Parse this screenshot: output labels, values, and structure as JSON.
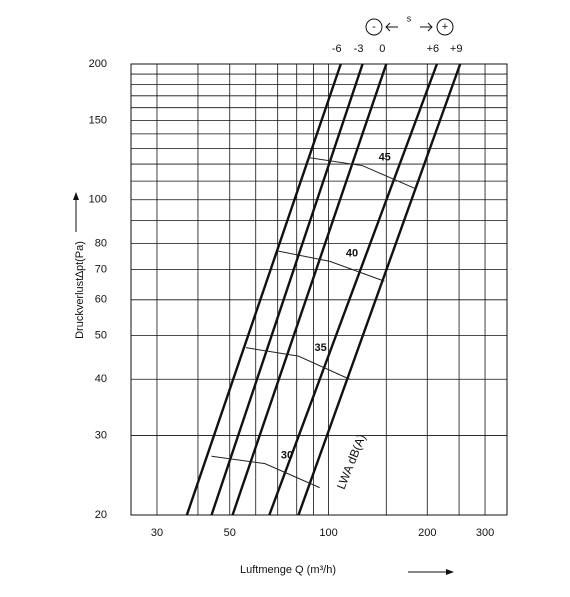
{
  "chart_data": {
    "type": "line",
    "y_label": "Druckverlust∆pt(Pa)",
    "x_label": "Luftmenge Q (m³/h)",
    "line_label": "LWA dB(A)",
    "minus": "-",
    "plus": "+",
    "s_label": "s",
    "xlog": true,
    "ylog": true,
    "grid": true,
    "xlim": [
      25,
      350
    ],
    "ylim": [
      20,
      200
    ],
    "xticks": [
      30,
      50,
      100,
      200,
      300
    ],
    "xminor": [
      40,
      60,
      70,
      80,
      90,
      150,
      250
    ],
    "yticks": [
      20,
      30,
      40,
      50,
      60,
      70,
      80,
      100,
      150,
      200
    ],
    "yminor": [
      90,
      110,
      120,
      130,
      140,
      160,
      170,
      180,
      190
    ],
    "series": [
      {
        "name": "-6",
        "color": "#111",
        "x": [
          37,
          109
        ],
        "values": [
          20,
          200
        ]
      },
      {
        "name": "-3",
        "color": "#111",
        "x": [
          44,
          127
        ],
        "values": [
          20,
          200
        ]
      },
      {
        "name": "0",
        "color": "#111",
        "x": [
          51,
          150
        ],
        "values": [
          20,
          200
        ]
      },
      {
        "name": "+6",
        "color": "#111",
        "x": [
          66,
          214
        ],
        "values": [
          20,
          200
        ]
      },
      {
        "name": "+9",
        "color": "#111",
        "x": [
          81,
          252
        ],
        "values": [
          20,
          200
        ]
      }
    ],
    "noise_curves": [
      {
        "name": "45",
        "color": "#222",
        "x": [
          87,
          127,
          183
        ],
        "values": [
          124,
          119,
          106
        ]
      },
      {
        "name": "40",
        "color": "#222",
        "x": [
          70,
          101,
          148
        ],
        "values": [
          77,
          73,
          66
        ]
      },
      {
        "name": "35",
        "color": "#222",
        "x": [
          56,
          81,
          116
        ],
        "values": [
          47,
          45,
          40
        ]
      },
      {
        "name": "30",
        "color": "#222",
        "x": [
          44,
          64,
          94
        ],
        "values": [
          27,
          26,
          23
        ]
      }
    ]
  }
}
